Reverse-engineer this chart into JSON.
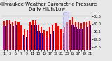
{
  "title": "Milwaukee Weather Barometric Pressure",
  "subtitle": "Daily High/Low",
  "ylim": [
    28.3,
    30.75
  ],
  "xlim": [
    0.3,
    31.7
  ],
  "bar_width": 0.38,
  "days": [
    1,
    2,
    3,
    4,
    5,
    6,
    7,
    8,
    9,
    10,
    11,
    12,
    13,
    14,
    15,
    16,
    17,
    18,
    19,
    20,
    21,
    22,
    23,
    24,
    25,
    26,
    27,
    28,
    29,
    30,
    31
  ],
  "highs": [
    30.18,
    30.22,
    30.21,
    30.15,
    30.18,
    30.11,
    29.9,
    29.65,
    29.6,
    30.1,
    30.22,
    30.24,
    29.95,
    29.8,
    29.6,
    29.55,
    29.75,
    29.9,
    30.02,
    29.85,
    29.65,
    29.75,
    30.1,
    30.25,
    30.45,
    30.15,
    30.1,
    30.05,
    30.08,
    30.12,
    30.2
  ],
  "lows": [
    29.85,
    29.92,
    30.0,
    29.88,
    29.95,
    29.7,
    29.4,
    29.25,
    29.15,
    29.6,
    29.9,
    29.95,
    29.55,
    29.4,
    29.2,
    29.1,
    29.35,
    29.55,
    29.7,
    29.45,
    29.25,
    29.4,
    29.75,
    29.9,
    29.95,
    29.8,
    29.7,
    29.7,
    29.75,
    29.8,
    29.9
  ],
  "high_color": "#ff0000",
  "low_color": "#0000cc",
  "bg_color": "#e8e8e8",
  "plot_bg_color": "#e8e8e8",
  "title_color": "#000000",
  "title_fontsize": 5.0,
  "tick_fontsize": 3.5,
  "yticks": [
    28.5,
    29.0,
    29.5,
    30.0,
    30.5
  ],
  "ytick_labels": [
    "28.5",
    "29.0",
    "29.5",
    "30.0",
    "30.5"
  ],
  "highlight_start": 21.5,
  "highlight_end": 23.5,
  "highlight_color": "#ccccff",
  "highlight_border": "#8888ff"
}
